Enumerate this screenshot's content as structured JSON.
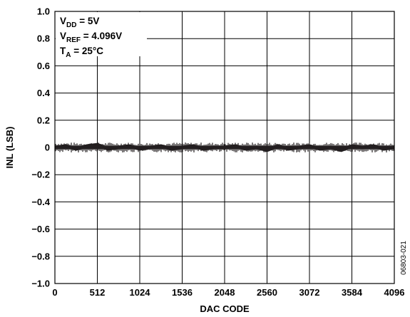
{
  "chart_data": {
    "type": "line",
    "title": "",
    "xlabel": "DAC CODE",
    "ylabel": "INL (LSB)",
    "xlim": [
      0,
      4096
    ],
    "ylim": [
      -1.0,
      1.0
    ],
    "x_ticks": [
      0,
      512,
      1024,
      1536,
      2048,
      2560,
      3072,
      3584,
      4096
    ],
    "x_tick_labels": [
      "0",
      "512",
      "1024",
      "1536",
      "2048",
      "2560",
      "3072",
      "3584",
      "4096"
    ],
    "y_ticks": [
      1.0,
      0.8,
      0.6,
      0.4,
      0.2,
      0,
      -0.2,
      -0.4,
      -0.6,
      -0.8,
      -1.0
    ],
    "y_tick_labels": [
      "1.0",
      "0.8",
      "0.6",
      "0.4",
      "0.2",
      "0",
      "−0.2",
      "−0.4",
      "−0.6",
      "−0.8",
      "−1.0"
    ],
    "grid": true,
    "series": [
      {
        "color": "#231f20",
        "description_values": "INL noise band approximately ±0.02 LSB around 0 across all codes",
        "x": [
          0,
          128,
          256,
          384,
          512,
          640,
          768,
          896,
          1024,
          1152,
          1280,
          1408,
          1536,
          1664,
          1792,
          1920,
          2048,
          2176,
          2304,
          2432,
          2560,
          2688,
          2816,
          2944,
          3072,
          3200,
          3328,
          3456,
          3584,
          3712,
          3840,
          3968,
          4095
        ],
        "y": [
          0.0,
          0.01,
          -0.01,
          0.01,
          0.02,
          -0.01,
          0.0,
          0.01,
          -0.01,
          0.0,
          0.01,
          -0.01,
          0.0,
          0.01,
          -0.01,
          0.0,
          0.0,
          0.01,
          -0.01,
          0.0,
          -0.02,
          0.01,
          -0.01,
          0.0,
          0.01,
          -0.01,
          0.0,
          -0.02,
          0.01,
          0.0,
          0.01,
          -0.01,
          0.0
        ]
      }
    ]
  },
  "annotation": {
    "vdd_main": "V",
    "vdd_sub": "DD",
    "vdd_rest": " = 5V",
    "vref_main": "V",
    "vref_sub": "REF",
    "vref_rest": " = 4.096V",
    "ta_main": "T",
    "ta_sub": "A",
    "ta_rest": " = 25°C"
  },
  "figure_id": "06803-021"
}
